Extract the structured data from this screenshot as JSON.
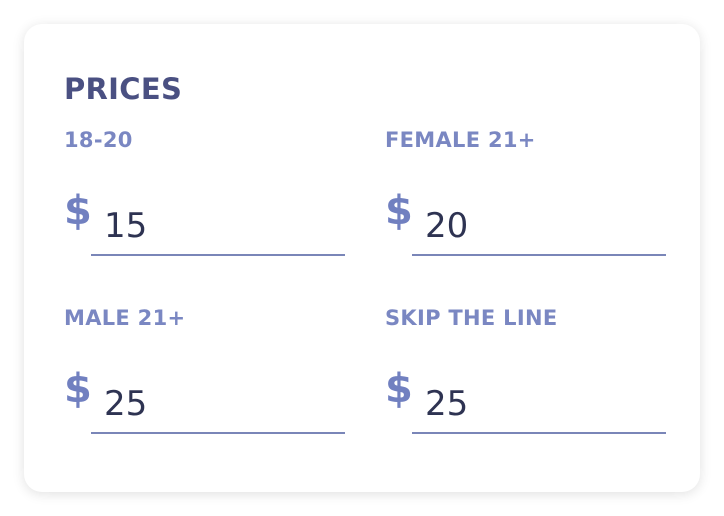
{
  "header": {
    "title": "PRICES"
  },
  "currency": "$",
  "fields": [
    {
      "label": "18-20",
      "value": 15
    },
    {
      "label": "FEMALE 21+",
      "value": 20
    },
    {
      "label": "MALE 21+",
      "value": 25
    },
    {
      "label": "SKIP THE LINE",
      "value": 25
    }
  ]
}
